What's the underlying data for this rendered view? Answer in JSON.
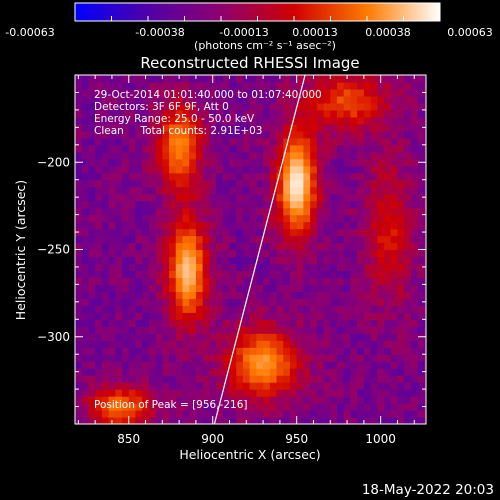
{
  "colorbar": {
    "ticks": [
      "-0.00063",
      "-0.00038",
      "-0.00013",
      "0.00013",
      "0.00038",
      "0.00063"
    ],
    "unit_label": "(photons cm⁻² s⁻¹ asec⁻²)"
  },
  "chart_data": {
    "type": "heatmap",
    "title": "Reconstructed RHESSI Image",
    "xlabel": "Heliocentric X (arcsec)",
    "ylabel": "Heliocentric Y (arcsec)",
    "xlim": [
      818,
      1027
    ],
    "ylim": [
      -350,
      -150
    ],
    "xticks": [
      850,
      900,
      950,
      1000
    ],
    "yticks": [
      -200,
      -250,
      -300
    ],
    "xtick_labels": [
      "850",
      "900",
      "950",
      "1000"
    ],
    "ytick_labels": [
      "−200",
      "−250",
      "−300"
    ],
    "color_range": [
      -0.00063,
      0.00063
    ],
    "colormap": [
      "#0000ff",
      "#5000a8",
      "#8f006f",
      "#d00000",
      "#ff7a00",
      "#ffffff"
    ],
    "info_lines": [
      "29-Oct-2014 01:01:40.000 to 01:07:40.000",
      "Detectors: 3F 6F 9F, Att 0",
      "Energy Range: 25.0 - 50.0 keV",
      "Clean     Total counts: 2.91E+03"
    ],
    "peak_label": "Position of Peak = [956,-216]",
    "limb_line": [
      [
        901,
        -350
      ],
      [
        955,
        -150
      ]
    ],
    "sources": [
      {
        "x": 880,
        "y": -190,
        "sx": 10,
        "sy": 18,
        "amp": 0.75
      },
      {
        "x": 885,
        "y": -262,
        "sx": 9,
        "sy": 22,
        "amp": 0.9
      },
      {
        "x": 845,
        "y": -340,
        "sx": 14,
        "sy": 9,
        "amp": 0.7
      },
      {
        "x": 950,
        "y": -212,
        "sx": 9,
        "sy": 22,
        "amp": 1.0
      },
      {
        "x": 930,
        "y": -315,
        "sx": 16,
        "sy": 15,
        "amp": 0.8
      },
      {
        "x": 980,
        "y": -165,
        "sx": 18,
        "sy": 12,
        "amp": 0.6
      },
      {
        "x": 1005,
        "y": -240,
        "sx": 10,
        "sy": 30,
        "amp": 0.45
      }
    ]
  },
  "timestamp": "18-May-2022 20:03"
}
